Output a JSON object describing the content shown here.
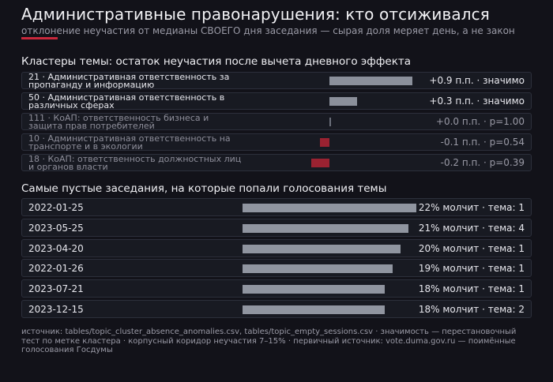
{
  "title": "Административные правонарушения: кто отсиживался",
  "subtitle": "отклонение неучастия от медианы СВОЕГО дня заседания — сырая доля меряет день, а не закон",
  "colors": {
    "positive": "#8b909b",
    "negative": "#9a2231",
    "neutral": "#6b6f7a",
    "accent": "#c8283c",
    "session_bar": "#9095a0"
  },
  "chart_data": [
    {
      "type": "bar",
      "title": "Кластеры темы: остаток неучастия после вычета дневного эффекта",
      "categories": [
        "21 · Административная ответственность за пропаганду и информацию",
        "50 · Административная ответственность в различных сферах",
        "111 · КоАП: ответственность бизнеса и защита прав потребителей",
        "10 · Административная ответственность на транспорте и в экологии",
        "18 · КоАП: ответственность должностных лиц и органов власти"
      ],
      "values": [
        0.9,
        0.3,
        0.0,
        -0.1,
        -0.2
      ],
      "stat_labels": [
        "+0.9 п.п. · значимо",
        "+0.3 п.п. · значимо",
        "+0.0 п.п. · p=1.00",
        "-0.1 п.п. · p=0.54",
        "-0.2 п.п. · p=0.39"
      ],
      "significant": [
        true,
        true,
        false,
        false,
        false
      ]
    },
    {
      "type": "bar",
      "title": "Самые пустые заседания, на которые попали голосования темы",
      "categories": [
        "2022-01-25",
        "2023-05-25",
        "2023-04-20",
        "2022-01-26",
        "2023-07-21",
        "2023-12-15"
      ],
      "values": [
        22,
        21,
        20,
        19,
        18,
        18
      ],
      "stat_labels": [
        "22% молчит · тема: 1",
        "21% молчит · тема: 4",
        "20% молчит · тема: 1",
        "19% молчит · тема: 1",
        "18% молчит · тема: 1",
        "18% молчит · тема: 2"
      ]
    }
  ],
  "footnote": "источник: tables/topic_cluster_absence_anomalies.csv, tables/topic_empty_sessions.csv · значимость — перестановочный тест по метке кластера · корпусный коридор неучастия 7–15% · первичный источник: vote.duma.gov.ru — поимённые голосования Госдумы"
}
